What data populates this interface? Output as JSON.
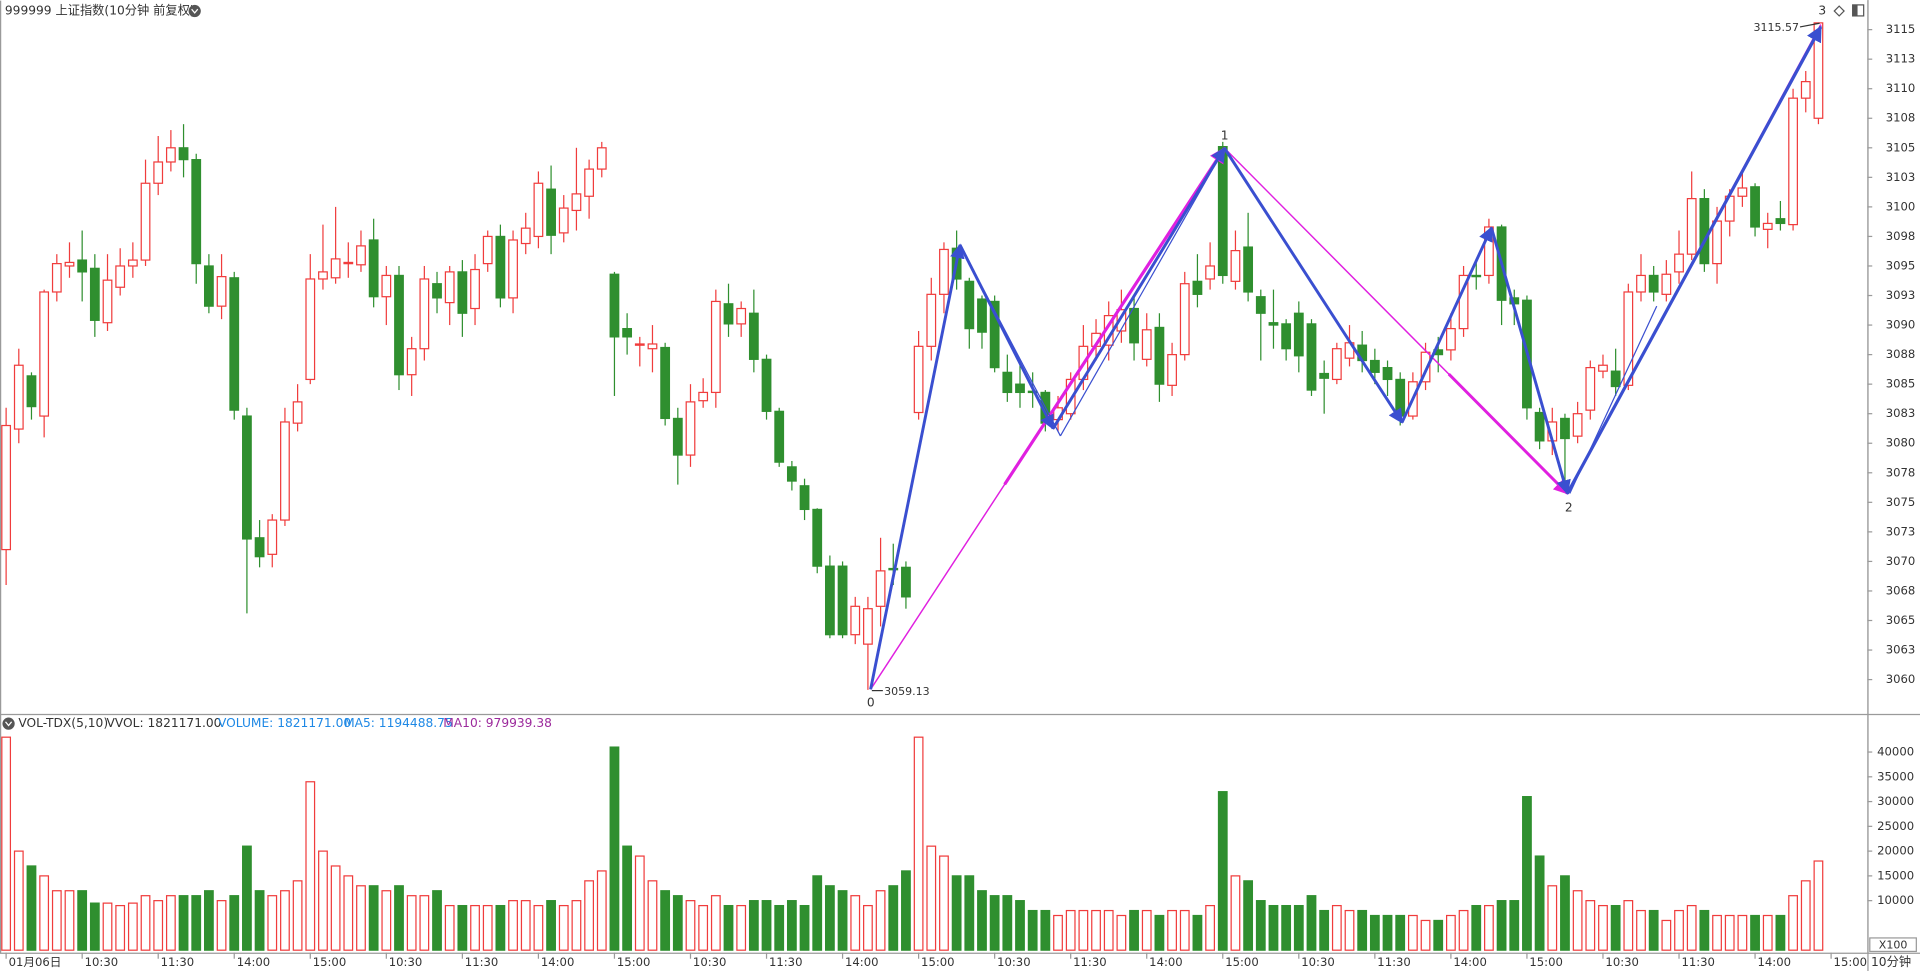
{
  "chart_data": [
    {
      "type": "candlestick",
      "title": "999999 上证指数(10分钟 前复权)",
      "up_color": "#f03c3c",
      "down_color": "#2f8f2f",
      "ylim": [
        3057.1,
        3117.3
      ],
      "yticks": [
        3060,
        {
          "value": 3062.5,
          "label": "3063"
        },
        3065,
        {
          "value": 3067.5,
          "label": "3068"
        },
        3070,
        {
          "value": 3072.5,
          "label": "3073"
        },
        3075,
        {
          "value": 3077.5,
          "label": "3078"
        },
        3080,
        {
          "value": 3082.5,
          "label": "3083"
        },
        3085,
        {
          "value": 3087.5,
          "label": "3088"
        },
        3090,
        {
          "value": 3092.5,
          "label": "3093"
        },
        3095,
        {
          "value": 3097.5,
          "label": "3098"
        },
        3100,
        {
          "value": 3102.5,
          "label": "3103"
        },
        3105,
        {
          "value": 3107.5,
          "label": "3108"
        },
        3110,
        {
          "value": 3112.5,
          "label": "3113"
        },
        3115
      ],
      "xticks": [
        {
          "value": 0,
          "label": "01月06日"
        },
        {
          "value": 6,
          "label": "10:30"
        },
        {
          "value": 12,
          "label": "11:30"
        },
        {
          "value": 18,
          "label": "14:00"
        },
        {
          "value": 24,
          "label": "15:00"
        },
        {
          "value": 30,
          "label": "10:30"
        },
        {
          "value": 36,
          "label": "11:30"
        },
        {
          "value": 42,
          "label": "14:00"
        },
        {
          "value": 48,
          "label": "15:00"
        },
        {
          "value": 54,
          "label": "10:30"
        },
        {
          "value": 60,
          "label": "11:30"
        },
        {
          "value": 66,
          "label": "14:00"
        },
        {
          "value": 72,
          "label": "15:00"
        },
        {
          "value": 78,
          "label": "10:30"
        },
        {
          "value": 84,
          "label": "11:30"
        },
        {
          "value": 90,
          "label": "14:00"
        },
        {
          "value": 96,
          "label": "15:00"
        },
        {
          "value": 102,
          "label": "10:30"
        },
        {
          "value": 108,
          "label": "11:30"
        },
        {
          "value": 114,
          "label": "14:00"
        },
        {
          "value": 120,
          "label": "15:00"
        },
        {
          "value": 126,
          "label": "10:30"
        },
        {
          "value": 132,
          "label": "11:30"
        },
        {
          "value": 138,
          "label": "14:00"
        },
        {
          "value": 144,
          "label": "15:00"
        }
      ],
      "open": [
        3071,
        3081.2,
        3085.7,
        3082.3,
        3092.8,
        3095,
        3095.5,
        3094.8,
        3090.2,
        3093.2,
        3095,
        3095.5,
        3102,
        3103.8,
        3105,
        3104,
        3095,
        3091.6,
        3094,
        3082.3,
        3072,
        3070.6,
        3073.5,
        3081.7,
        3085.4,
        3093.9,
        3094,
        3095.2,
        3095.1,
        3097.2,
        3092.4,
        3094.2,
        3085.8,
        3088,
        3093.5,
        3091.9,
        3094.5,
        3091.4,
        3095.2,
        3097.5,
        3092.3,
        3096.9,
        3097.5,
        3101.5,
        3097.8,
        3099.7,
        3100.9,
        3103.2,
        3094.3,
        3089.7,
        3088.3,
        3088,
        3088.1,
        3082.1,
        3079,
        3083.6,
        3084.3,
        3091.8,
        3090.1,
        3091,
        3087.1,
        3082.7,
        3078,
        3076.4,
        3074.4,
        3069.6,
        3069.6,
        3063.8,
        3063,
        3066.2,
        3069.4,
        3069.5,
        3082.6,
        3088.2,
        3092.6,
        3096.5,
        3093.7,
        3092.2,
        3092,
        3086,
        3085,
        3084.4,
        3084.3,
        3082,
        3082.5,
        3085.4,
        3088.2,
        3088.3,
        3089.5,
        3091.4,
        3087.1,
        3089.8,
        3084.9,
        3087.5,
        3093.7,
        3093.9,
        3105.1,
        3093.7,
        3096.6,
        3092.4,
        3090.2,
        3090.1,
        3091,
        3090.1,
        3085.9,
        3085.4,
        3087.2,
        3088.3,
        3087,
        3086.4,
        3085.4,
        3082.3,
        3085.2,
        3087.9,
        3087.9,
        3089.7,
        3094.2,
        3094.2,
        3098.3,
        3092.3,
        3092.1,
        3082.6,
        3080.2,
        3082.1,
        3080.6,
        3082.8,
        3086.1,
        3086.1,
        3084.9,
        3092.8,
        3094.2,
        3092.6,
        3094.5,
        3096,
        3100.7,
        3095.2,
        3098.8,
        3100.9,
        3101.7,
        3098.1,
        3099,
        3098.5,
        3109.2,
        3107.5
      ],
      "high": [
        3083,
        3088,
        3086,
        3093,
        3096,
        3097,
        3098,
        3096,
        3096,
        3096.5,
        3097,
        3104,
        3106,
        3106.5,
        3107,
        3104.5,
        3096,
        3096,
        3094.5,
        3083,
        3073.5,
        3074,
        3083,
        3085,
        3096,
        3098.5,
        3100,
        3097,
        3098,
        3099,
        3095,
        3095,
        3089,
        3095,
        3094.5,
        3095,
        3095.5,
        3096,
        3098,
        3098.5,
        3098,
        3099.5,
        3103,
        3103.5,
        3101,
        3105,
        3104,
        3105.5,
        3094.5,
        3091,
        3089,
        3090,
        3088.5,
        3083,
        3085,
        3085.5,
        3093,
        3093.5,
        3092,
        3093,
        3087.5,
        3083,
        3078.5,
        3077,
        3074.5,
        3070.5,
        3070,
        3067,
        3067,
        3072,
        3071.5,
        3070,
        3089.5,
        3094,
        3097,
        3098,
        3094,
        3092.5,
        3092.5,
        3087.5,
        3087,
        3086,
        3084.5,
        3084,
        3086,
        3090,
        3090.5,
        3092,
        3093,
        3092.5,
        3091,
        3091,
        3088.5,
        3094.5,
        3096,
        3097,
        3105.5,
        3098,
        3099.5,
        3093,
        3093,
        3090.5,
        3092,
        3090.5,
        3087,
        3088.5,
        3090,
        3089.5,
        3088,
        3087,
        3086,
        3086,
        3088.5,
        3089,
        3091,
        3095,
        3095.5,
        3099,
        3098.5,
        3093,
        3092.5,
        3083,
        3083,
        3082.5,
        3083.5,
        3087,
        3087.5,
        3088,
        3093.5,
        3096,
        3095,
        3095.5,
        3098,
        3103,
        3101.5,
        3100,
        3101.5,
        3103,
        3102,
        3099.5,
        3100.5,
        3110,
        3111.5,
        3115.57
      ],
      "low": [
        3068,
        3080,
        3082,
        3080.5,
        3092,
        3094,
        3092,
        3089,
        3089.5,
        3092.5,
        3094,
        3095,
        3101,
        3103,
        3102.5,
        3093.5,
        3091,
        3090.5,
        3082,
        3065.6,
        3069.5,
        3069.5,
        3073,
        3081,
        3085,
        3093,
        3093.5,
        3094,
        3094.5,
        3091.5,
        3090,
        3084.5,
        3084,
        3087,
        3091,
        3090,
        3089,
        3090,
        3094.5,
        3091.5,
        3091,
        3096,
        3096.5,
        3096,
        3097,
        3098,
        3099,
        3102.5,
        3084,
        3087.5,
        3086.5,
        3086,
        3081.5,
        3076.5,
        3078,
        3083,
        3083,
        3089,
        3089,
        3086,
        3082,
        3078,
        3076,
        3073.5,
        3069,
        3063.5,
        3063.5,
        3063,
        3059.13,
        3064.5,
        3068,
        3066,
        3082,
        3087,
        3091,
        3093,
        3088,
        3088,
        3086,
        3083.5,
        3083,
        3083,
        3081,
        3081,
        3082,
        3084.5,
        3087,
        3087,
        3088.5,
        3087,
        3086.5,
        3083.5,
        3084,
        3087,
        3091.5,
        3093,
        3093.5,
        3093,
        3092,
        3087,
        3088,
        3087,
        3086,
        3084,
        3082.5,
        3085,
        3086.5,
        3086,
        3085,
        3084,
        3081.5,
        3082,
        3084.5,
        3086,
        3087,
        3089,
        3093,
        3093.5,
        3090,
        3090,
        3082,
        3079.5,
        3079,
        3075.9,
        3080,
        3082,
        3085.5,
        3084,
        3084.5,
        3092,
        3092,
        3092,
        3093.5,
        3095.5,
        3094.5,
        3093.5,
        3097.5,
        3100,
        3097.5,
        3096.5,
        3098,
        3098,
        3108,
        3107
      ],
      "close": [
        3081.5,
        3086.6,
        3083.1,
        3092.8,
        3095.2,
        3095.3,
        3094.5,
        3090.4,
        3093.8,
        3095,
        3095.5,
        3102,
        3103.8,
        3105,
        3104,
        3095.2,
        3091.6,
        3094.1,
        3082.8,
        3071.9,
        3070.4,
        3073.5,
        3081.8,
        3083.5,
        3093.9,
        3094.5,
        3095.6,
        3095.3,
        3096.7,
        3092.4,
        3094.2,
        3085.8,
        3088,
        3093.9,
        3092.3,
        3094.5,
        3091,
        3094.7,
        3097.5,
        3092.3,
        3097.2,
        3098.2,
        3102,
        3097.6,
        3099.9,
        3101.1,
        3103.2,
        3105,
        3089,
        3089,
        3088.4,
        3088.4,
        3082.1,
        3079,
        3083.5,
        3084.3,
        3092,
        3090.1,
        3091.4,
        3087.1,
        3082.7,
        3078.4,
        3076.8,
        3074.4,
        3069.6,
        3063.8,
        3063.8,
        3066.2,
        3066,
        3069.2,
        3069.3,
        3067,
        3088.2,
        3092.6,
        3096.4,
        3093.9,
        3089.7,
        3089.4,
        3086.4,
        3084.3,
        3084.3,
        3084.3,
        3081.7,
        3083,
        3085.4,
        3088.2,
        3089.3,
        3090.8,
        3091.3,
        3088.5,
        3089.6,
        3085,
        3087.5,
        3093.5,
        3092.6,
        3095,
        3094.2,
        3096.3,
        3092.8,
        3091,
        3090,
        3088,
        3087.4,
        3084.5,
        3085.5,
        3088,
        3088.5,
        3087,
        3086,
        3085.4,
        3082.3,
        3085.2,
        3087.7,
        3087.5,
        3089.7,
        3094.2,
        3094.1,
        3098.3,
        3092.1,
        3091.8,
        3083,
        3080.2,
        3081.8,
        3080.4,
        3082.5,
        3086.4,
        3086.6,
        3084.8,
        3092.8,
        3094.2,
        3092.8,
        3094.3,
        3096,
        3100.7,
        3095.2,
        3098.8,
        3100.9,
        3101.6,
        3098.3,
        3098.6,
        3098.6,
        3109.2,
        3110.6,
        3115.57
      ],
      "wave_labels": [
        "0",
        "1",
        "2",
        "3"
      ],
      "price_labels": [
        3059.13,
        3115.57
      ],
      "period": "10分钟"
    },
    {
      "type": "bar",
      "title": "VOL-TDX(5,10)",
      "readouts": [
        {
          "text": "VVOL: 1821171.00",
          "color": "#333333"
        },
        {
          "text": "VOLUME: 1821171.00",
          "color": "#1e88e5"
        },
        {
          "text": "MA5: 1194488.75",
          "color": "#1e88e5"
        },
        {
          "text": "MA10: 979939.38",
          "color": "#9c2a9c"
        }
      ],
      "unit_label": "X100",
      "ylim": [
        0,
        44000
      ],
      "yticks": [
        10000,
        15000,
        20000,
        25000,
        30000,
        35000,
        40000
      ],
      "values": [
        43000,
        20000,
        17000,
        15000,
        12000,
        12000,
        12000,
        9500,
        9500,
        9000,
        9500,
        11000,
        10000,
        11000,
        11000,
        11000,
        12000,
        10000,
        11000,
        21000,
        12000,
        11000,
        12000,
        14000,
        34000,
        20000,
        17000,
        15000,
        13000,
        13000,
        12000,
        13000,
        11000,
        11000,
        12000,
        9000,
        9000,
        9000,
        9000,
        9000,
        10000,
        10000,
        9000,
        10000,
        9000,
        10000,
        14000,
        16000,
        41000,
        21000,
        19000,
        14000,
        12000,
        11000,
        10000,
        9000,
        11000,
        9000,
        9000,
        10000,
        10000,
        9000,
        10000,
        9000,
        15000,
        13000,
        12000,
        11000,
        9000,
        12000,
        13000,
        16000,
        43000,
        21000,
        19000,
        15000,
        15000,
        12000,
        11000,
        11000,
        10000,
        8000,
        8000,
        7000,
        8000,
        8000,
        8000,
        8000,
        7000,
        8000,
        8000,
        7000,
        8000,
        8000,
        7000,
        9000,
        32000,
        15000,
        14000,
        10000,
        9000,
        9000,
        9000,
        11000,
        8000,
        9000,
        8000,
        8000,
        7000,
        7000,
        7000,
        7000,
        6000,
        6000,
        7000,
        8000,
        9000,
        9000,
        10000,
        10000,
        31000,
        19000,
        13000,
        15000,
        12000,
        10000,
        9000,
        9000,
        10000,
        8000,
        8000,
        6000,
        8000,
        9000,
        8000,
        7000,
        7000,
        7000,
        7000,
        7000,
        7000,
        11000,
        14000,
        18000
      ]
    }
  ]
}
